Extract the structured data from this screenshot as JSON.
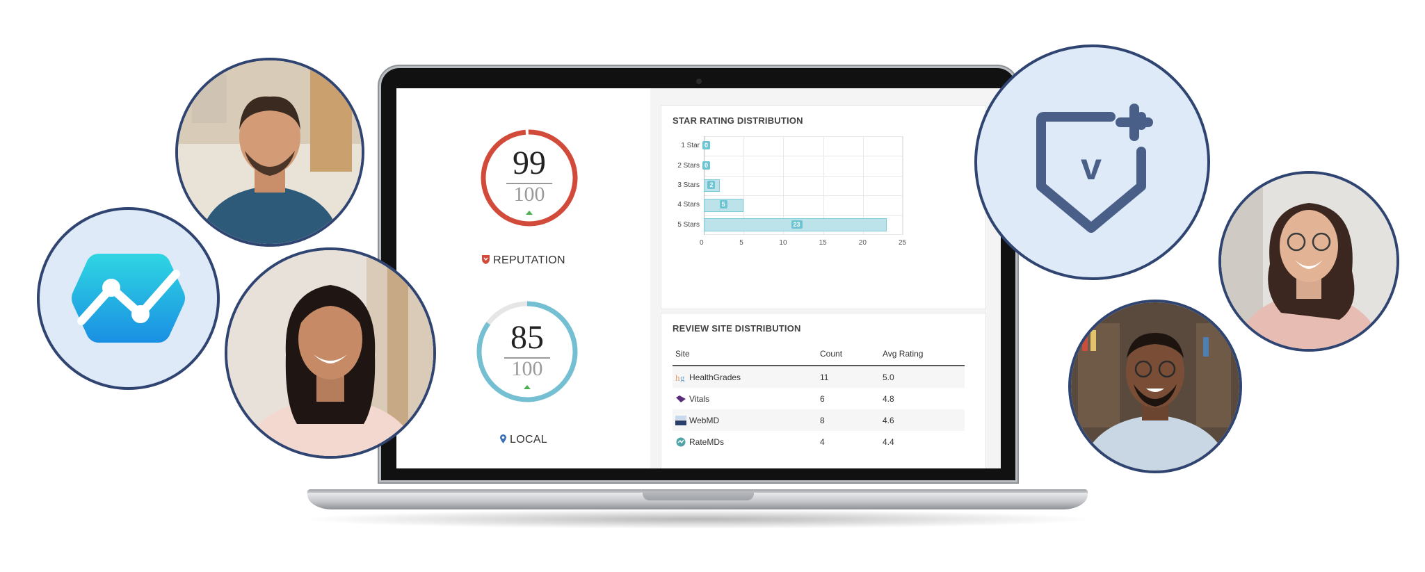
{
  "scores": {
    "reputation": {
      "score": "99",
      "total": "100",
      "label": "REPUTATION",
      "color": "#d24a3a"
    },
    "local": {
      "score": "85",
      "total": "100",
      "label": "LOCAL",
      "color": "#74c0d2"
    }
  },
  "star_chart": {
    "title": "STAR RATING DISTRIBUTION",
    "categories": [
      "1 Star",
      "2 Stars",
      "3 Stars",
      "4 Stars",
      "5 Stars"
    ],
    "values": [
      0,
      0,
      2,
      5,
      23
    ],
    "value_labels": [
      "0",
      "0",
      "2",
      "5",
      "23"
    ],
    "x_ticks": [
      "0",
      "5",
      "10",
      "15",
      "20",
      "25"
    ]
  },
  "chart_data": {
    "type": "bar",
    "title": "STAR RATING DISTRIBUTION",
    "orientation": "horizontal",
    "categories": [
      "1 Star",
      "2 Stars",
      "3 Stars",
      "4 Stars",
      "5 Stars"
    ],
    "values": [
      0,
      0,
      2,
      5,
      23
    ],
    "xlim": [
      0,
      25
    ],
    "grid": true
  },
  "review_sites": {
    "title": "REVIEW SITE DISTRIBUTION",
    "headers": {
      "site": "Site",
      "count": "Count",
      "avg": "Avg Rating"
    },
    "rows": [
      {
        "site": "HealthGrades",
        "count": "11",
        "avg": "5.0",
        "icon": "healthgrades-logo"
      },
      {
        "site": "Vitals",
        "count": "6",
        "avg": "4.8",
        "icon": "vitals-logo"
      },
      {
        "site": "WebMD",
        "count": "8",
        "avg": "4.6",
        "icon": "webmd-logo"
      },
      {
        "site": "RateMDs",
        "count": "4",
        "avg": "4.4",
        "icon": "ratemds-logo"
      }
    ]
  },
  "decor": {
    "icon_left": "chart-trend-hexagon-icon",
    "icon_right": "shield-v-plus-icon",
    "accent": "#2f4470",
    "circle_bg": "#dfeaf8"
  }
}
